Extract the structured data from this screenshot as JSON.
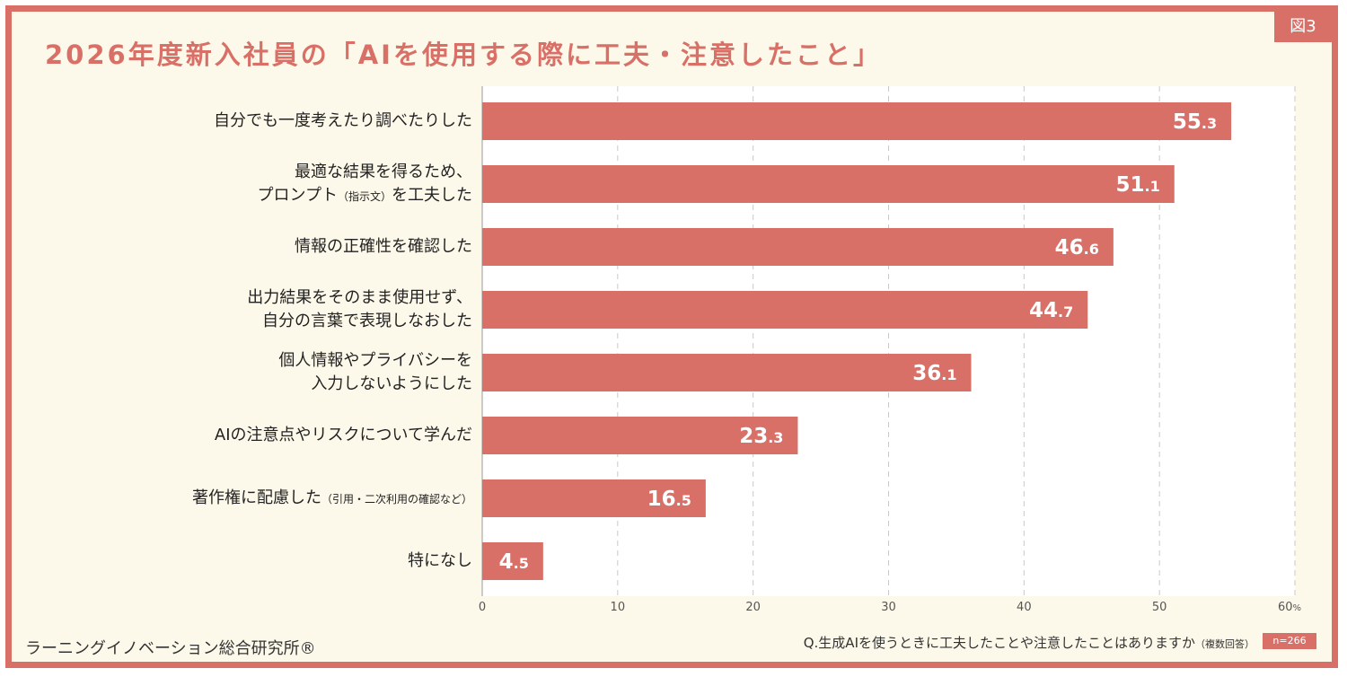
{
  "figure_tag": "図3",
  "title": "2026年度新入社員の「AIを使用する際に工夫・注意したこと」",
  "footer": {
    "organization": "ラーニングイノベーション総合研究所®",
    "question_main": "Q.生成AIを使うときに工夫したことや注意したことはありますか",
    "question_note": "（複数回答）",
    "sample_size": "n=266"
  },
  "colors": {
    "accent": "#d97068",
    "background": "#fdf9ea",
    "plot_area": "#ffffff",
    "grid": "#c9c9c9"
  },
  "chart_data": {
    "type": "bar",
    "orientation": "horizontal",
    "categories": [
      [
        "自分でも一度考えたり調べたりした"
      ],
      [
        "最適な結果を得るため、",
        "プロンプト（指示文）を工夫した"
      ],
      [
        "情報の正確性を確認した"
      ],
      [
        "出力結果をそのまま使用せず、",
        "自分の言葉で表現しなおした"
      ],
      [
        "個人情報やプライバシーを",
        "入力しないようにした"
      ],
      [
        "AIの注意点やリスクについて学んだ"
      ],
      [
        "著作権に配慮した（引用・二次利用の確認など）"
      ],
      [
        "特になし"
      ]
    ],
    "values": [
      55.3,
      51.1,
      46.6,
      44.7,
      36.1,
      23.3,
      16.5,
      4.5
    ],
    "xlim": [
      0,
      60
    ],
    "x_ticks": [
      "0",
      "10",
      "20",
      "30",
      "40",
      "50",
      "60"
    ],
    "x_unit": "%",
    "grid": "vertical dashed"
  }
}
